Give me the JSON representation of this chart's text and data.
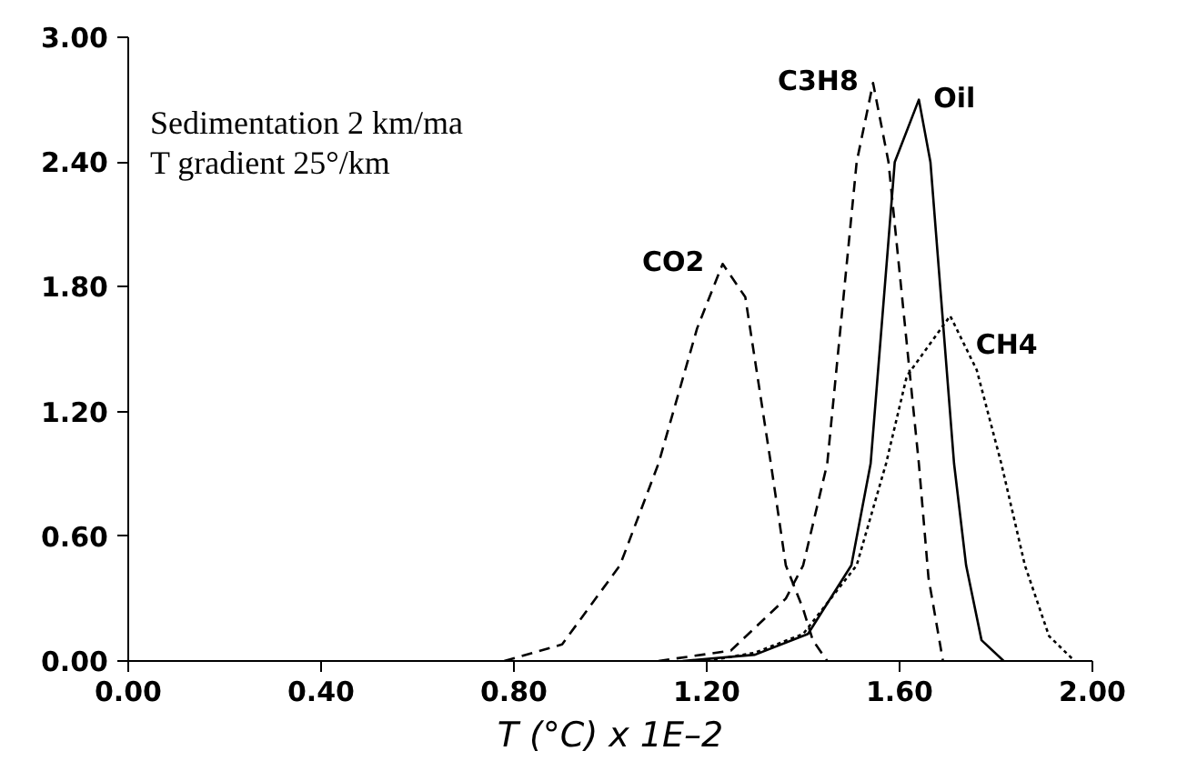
{
  "chart_data": {
    "type": "line",
    "xlabel": "T (°C) x 1E–2",
    "annotations": [
      "Sedimentation 2 km/ma",
      "T gradient 25°/km"
    ],
    "xlim": [
      0,
      2
    ],
    "ylim": [
      0,
      3
    ],
    "xticks": [
      {
        "value": 0,
        "label": "0.00"
      },
      {
        "value": 0.4,
        "label": "0.40"
      },
      {
        "value": 0.8,
        "label": "0.80"
      },
      {
        "value": 1.2,
        "label": "1.20"
      },
      {
        "value": 1.6,
        "label": "1.60"
      },
      {
        "value": 2,
        "label": "2.00"
      }
    ],
    "yticks": [
      {
        "value": 0,
        "label": "0.00"
      },
      {
        "value": 0.6,
        "label": "0.60"
      },
      {
        "value": 1.2,
        "label": "1.20"
      },
      {
        "value": 1.8,
        "label": "1.80"
      },
      {
        "value": 2.4,
        "label": "2.40"
      },
      {
        "value": 3,
        "label": "3.00"
      }
    ],
    "grid": false,
    "marker": "none",
    "series": [
      {
        "name": "CO2",
        "color": "#000000",
        "line_style": "dashed",
        "x": [
          0.78,
          0.9,
          1.02,
          1.1,
          1.18,
          1.233,
          1.28,
          1.333,
          1.364,
          1.4,
          1.42,
          1.45
        ],
        "values": [
          0,
          0.08,
          0.46,
          0.95,
          1.6,
          1.91,
          1.75,
          0.95,
          0.46,
          0.25,
          0.1,
          0
        ]
      },
      {
        "name": "C3H8",
        "color": "#000000",
        "line_style": "dashed",
        "x": [
          1.1,
          1.25,
          1.364,
          1.4,
          1.45,
          1.511,
          1.545,
          1.577,
          1.64,
          1.66,
          1.69
        ],
        "values": [
          0,
          0.05,
          0.3,
          0.46,
          0.95,
          2.4,
          2.78,
          2.4,
          0.95,
          0.4,
          0
        ]
      },
      {
        "name": "Oil",
        "color": "#000000",
        "line_style": "solid",
        "x": [
          1.15,
          1.3,
          1.41,
          1.5,
          1.54,
          1.59,
          1.64,
          1.664,
          1.713,
          1.738,
          1.77,
          1.816
        ],
        "values": [
          0,
          0.03,
          0.13,
          0.46,
          0.95,
          2.4,
          2.7,
          2.4,
          0.95,
          0.46,
          0.1,
          0
        ]
      },
      {
        "name": "CH4",
        "color": "#000000",
        "line_style": "dotted",
        "x": [
          1.2,
          1.3,
          1.4,
          1.511,
          1.572,
          1.615,
          1.705,
          1.76,
          1.811,
          1.86,
          1.91,
          1.963
        ],
        "values": [
          0,
          0.04,
          0.13,
          0.46,
          0.95,
          1.37,
          1.66,
          1.4,
          0.95,
          0.46,
          0.12,
          0
        ]
      }
    ]
  }
}
